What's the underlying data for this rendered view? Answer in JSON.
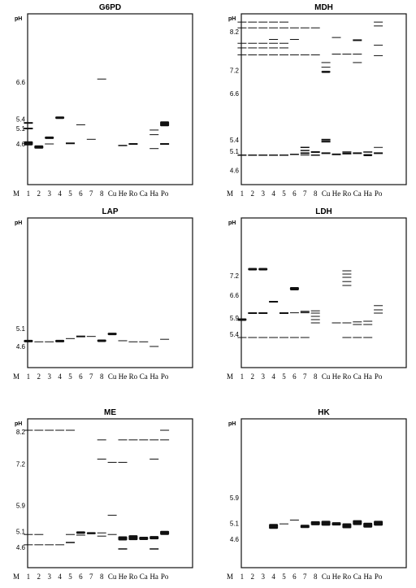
{
  "lanes": [
    "M",
    "1",
    "2",
    "3",
    "4",
    "5",
    "6",
    "7",
    "8",
    "Cu",
    "He",
    "Ro",
    "Ca",
    "Ha",
    "Po"
  ],
  "ph_unit": "pH",
  "panels": [
    {
      "name": "G6PD",
      "title": "G6PD",
      "ticks": [
        {
          "label": "6.6",
          "ph": 6.6
        },
        {
          "label": "5.4",
          "ph": 5.4
        },
        {
          "label": "5.1",
          "ph": 5.1
        },
        {
          "label": "4.6",
          "ph": 4.6
        }
      ],
      "bands": [
        {
          "lane": "1",
          "ph": 5.28,
          "w": 2
        },
        {
          "lane": "1",
          "ph": 5.1,
          "w": 2
        },
        {
          "lane": "1",
          "ph": 4.62,
          "w": 5
        },
        {
          "lane": "2",
          "ph": 4.5,
          "w": 4
        },
        {
          "lane": "3",
          "ph": 4.8,
          "w": 3
        },
        {
          "lane": "3",
          "ph": 4.6,
          "w": 1
        },
        {
          "lane": "4",
          "ph": 5.45,
          "w": 3
        },
        {
          "lane": "5",
          "ph": 4.62,
          "w": 2
        },
        {
          "lane": "6",
          "ph": 5.22,
          "w": 1
        },
        {
          "lane": "7",
          "ph": 4.75,
          "w": 1
        },
        {
          "lane": "8",
          "ph": 6.7,
          "w": 1
        },
        {
          "lane": "He",
          "ph": 4.55,
          "w": 1.5
        },
        {
          "lane": "Ro",
          "ph": 4.6,
          "w": 2
        },
        {
          "lane": "Ha",
          "ph": 5.05,
          "w": 1
        },
        {
          "lane": "Ha",
          "ph": 4.9,
          "w": 1
        },
        {
          "lane": "Ha",
          "ph": 4.45,
          "w": 1
        },
        {
          "lane": "Po",
          "ph": 5.25,
          "w": 6
        },
        {
          "lane": "Po",
          "ph": 4.6,
          "w": 2
        }
      ]
    },
    {
      "name": "MDH",
      "title": "MDH",
      "ticks": [
        {
          "label": "8.2",
          "ph": 8.2
        },
        {
          "label": "7.2",
          "ph": 7.2
        },
        {
          "label": "6.6",
          "ph": 6.6
        },
        {
          "label": "5.4",
          "ph": 5.4
        },
        {
          "label": "5.1",
          "ph": 5.1
        },
        {
          "label": "4.6",
          "ph": 4.6
        }
      ],
      "bands": [
        {
          "lane": "1",
          "ph": 8.45,
          "w": 1
        },
        {
          "lane": "1",
          "ph": 8.3,
          "w": 1
        },
        {
          "lane": "1",
          "ph": 7.9,
          "w": 1
        },
        {
          "lane": "1",
          "ph": 7.78,
          "w": 1
        },
        {
          "lane": "1",
          "ph": 7.6,
          "w": 1
        },
        {
          "lane": "1",
          "ph": 5.0,
          "w": 1.5
        },
        {
          "lane": "2",
          "ph": 8.45,
          "w": 1
        },
        {
          "lane": "2",
          "ph": 8.3,
          "w": 1
        },
        {
          "lane": "2",
          "ph": 7.9,
          "w": 1
        },
        {
          "lane": "2",
          "ph": 7.78,
          "w": 1
        },
        {
          "lane": "2",
          "ph": 7.6,
          "w": 1
        },
        {
          "lane": "2",
          "ph": 5.0,
          "w": 1.5
        },
        {
          "lane": "3",
          "ph": 8.45,
          "w": 1
        },
        {
          "lane": "3",
          "ph": 8.3,
          "w": 1
        },
        {
          "lane": "3",
          "ph": 7.9,
          "w": 1
        },
        {
          "lane": "3",
          "ph": 7.78,
          "w": 1
        },
        {
          "lane": "3",
          "ph": 7.6,
          "w": 1
        },
        {
          "lane": "3",
          "ph": 5.0,
          "w": 1.5
        },
        {
          "lane": "4",
          "ph": 8.45,
          "w": 1
        },
        {
          "lane": "4",
          "ph": 8.3,
          "w": 1
        },
        {
          "lane": "4",
          "ph": 8.0,
          "w": 1
        },
        {
          "lane": "4",
          "ph": 7.9,
          "w": 1
        },
        {
          "lane": "4",
          "ph": 7.78,
          "w": 1
        },
        {
          "lane": "4",
          "ph": 7.6,
          "w": 1
        },
        {
          "lane": "4",
          "ph": 5.0,
          "w": 1.5
        },
        {
          "lane": "5",
          "ph": 8.45,
          "w": 1
        },
        {
          "lane": "5",
          "ph": 8.3,
          "w": 1
        },
        {
          "lane": "5",
          "ph": 7.9,
          "w": 1
        },
        {
          "lane": "5",
          "ph": 7.78,
          "w": 1
        },
        {
          "lane": "5",
          "ph": 7.6,
          "w": 1
        },
        {
          "lane": "5",
          "ph": 5.0,
          "w": 1.5
        },
        {
          "lane": "6",
          "ph": 8.3,
          "w": 1
        },
        {
          "lane": "6",
          "ph": 8.0,
          "w": 1
        },
        {
          "lane": "6",
          "ph": 7.6,
          "w": 1
        },
        {
          "lane": "6",
          "ph": 5.02,
          "w": 1.5
        },
        {
          "lane": "7",
          "ph": 8.3,
          "w": 1
        },
        {
          "lane": "7",
          "ph": 7.6,
          "w": 1
        },
        {
          "lane": "7",
          "ph": 5.2,
          "w": 1.5
        },
        {
          "lane": "7",
          "ph": 5.12,
          "w": 1.5
        },
        {
          "lane": "7",
          "ph": 5.05,
          "w": 2
        },
        {
          "lane": "7",
          "ph": 5.0,
          "w": 1
        },
        {
          "lane": "8",
          "ph": 8.3,
          "w": 1
        },
        {
          "lane": "8",
          "ph": 7.6,
          "w": 1
        },
        {
          "lane": "8",
          "ph": 5.08,
          "w": 2
        },
        {
          "lane": "8",
          "ph": 5.0,
          "w": 1.5
        },
        {
          "lane": "Cu",
          "ph": 7.4,
          "w": 1
        },
        {
          "lane": "Cu",
          "ph": 7.28,
          "w": 1
        },
        {
          "lane": "Cu",
          "ph": 7.16,
          "w": 2.5
        },
        {
          "lane": "Cu",
          "ph": 5.4,
          "w": 2
        },
        {
          "lane": "Cu",
          "ph": 5.35,
          "w": 2
        },
        {
          "lane": "Cu",
          "ph": 5.05,
          "w": 2
        },
        {
          "lane": "He",
          "ph": 8.05,
          "w": 1
        },
        {
          "lane": "He",
          "ph": 7.62,
          "w": 1
        },
        {
          "lane": "He",
          "ph": 5.02,
          "w": 2
        },
        {
          "lane": "Ro",
          "ph": 7.62,
          "w": 1
        },
        {
          "lane": "Ro",
          "ph": 5.08,
          "w": 1.5
        },
        {
          "lane": "Ro",
          "ph": 5.04,
          "w": 2
        },
        {
          "lane": "Ca",
          "ph": 7.98,
          "w": 2
        },
        {
          "lane": "Ca",
          "ph": 7.62,
          "w": 1
        },
        {
          "lane": "Ca",
          "ph": 7.4,
          "w": 1
        },
        {
          "lane": "Ca",
          "ph": 5.05,
          "w": 2
        },
        {
          "lane": "Ha",
          "ph": 5.08,
          "w": 1.5
        },
        {
          "lane": "Ha",
          "ph": 5.0,
          "w": 2.5
        },
        {
          "lane": "Po",
          "ph": 8.45,
          "w": 1
        },
        {
          "lane": "Po",
          "ph": 8.35,
          "w": 1
        },
        {
          "lane": "Po",
          "ph": 7.85,
          "w": 1
        },
        {
          "lane": "Po",
          "ph": 7.58,
          "w": 1
        },
        {
          "lane": "Po",
          "ph": 5.2,
          "w": 1
        },
        {
          "lane": "Po",
          "ph": 5.05,
          "w": 2
        }
      ]
    },
    {
      "name": "LAP",
      "title": "LAP",
      "ticks": [
        {
          "label": "5.1",
          "ph": 5.1
        },
        {
          "label": "4.6",
          "ph": 4.6
        }
      ],
      "bands": [
        {
          "lane": "1",
          "ph": 4.75,
          "w": 3
        },
        {
          "lane": "2",
          "ph": 4.73,
          "w": 1
        },
        {
          "lane": "3",
          "ph": 4.73,
          "w": 1
        },
        {
          "lane": "4",
          "ph": 4.75,
          "w": 3
        },
        {
          "lane": "5",
          "ph": 4.82,
          "w": 1
        },
        {
          "lane": "6",
          "ph": 4.88,
          "w": 2
        },
        {
          "lane": "7",
          "ph": 4.88,
          "w": 1
        },
        {
          "lane": "8",
          "ph": 4.76,
          "w": 3
        },
        {
          "lane": "Cu",
          "ph": 4.95,
          "w": 3
        },
        {
          "lane": "He",
          "ph": 4.76,
          "w": 1
        },
        {
          "lane": "Ro",
          "ph": 4.73,
          "w": 1
        },
        {
          "lane": "Ca",
          "ph": 4.73,
          "w": 1
        },
        {
          "lane": "Ha",
          "ph": 4.6,
          "w": 1
        },
        {
          "lane": "Po",
          "ph": 4.8,
          "w": 1
        }
      ]
    },
    {
      "name": "LDH",
      "title": "LDH",
      "ticks": [
        {
          "label": "7.2",
          "ph": 7.2
        },
        {
          "label": "6.6",
          "ph": 6.6
        },
        {
          "label": "5.9",
          "ph": 5.9
        },
        {
          "label": "5.4",
          "ph": 5.4
        }
      ],
      "bands": [
        {
          "lane": "1",
          "ph": 5.85,
          "w": 3
        },
        {
          "lane": "1",
          "ph": 5.3,
          "w": 1
        },
        {
          "lane": "2",
          "ph": 7.4,
          "w": 3
        },
        {
          "lane": "2",
          "ph": 6.05,
          "w": 2
        },
        {
          "lane": "2",
          "ph": 5.3,
          "w": 1
        },
        {
          "lane": "3",
          "ph": 7.4,
          "w": 3
        },
        {
          "lane": "3",
          "ph": 6.05,
          "w": 2
        },
        {
          "lane": "3",
          "ph": 5.3,
          "w": 1
        },
        {
          "lane": "4",
          "ph": 6.4,
          "w": 2
        },
        {
          "lane": "4",
          "ph": 5.3,
          "w": 1
        },
        {
          "lane": "5",
          "ph": 6.05,
          "w": 2
        },
        {
          "lane": "5",
          "ph": 5.3,
          "w": 1
        },
        {
          "lane": "6",
          "ph": 6.8,
          "w": 4
        },
        {
          "lane": "6",
          "ph": 6.06,
          "w": 1
        },
        {
          "lane": "6",
          "ph": 5.3,
          "w": 1
        },
        {
          "lane": "7",
          "ph": 6.1,
          "w": 1.5
        },
        {
          "lane": "7",
          "ph": 6.06,
          "w": 1
        },
        {
          "lane": "7",
          "ph": 5.3,
          "w": 1
        },
        {
          "lane": "8",
          "ph": 6.12,
          "w": 1
        },
        {
          "lane": "8",
          "ph": 6.05,
          "w": 1
        },
        {
          "lane": "8",
          "ph": 5.95,
          "w": 1
        },
        {
          "lane": "8",
          "ph": 5.85,
          "w": 1
        },
        {
          "lane": "8",
          "ph": 5.75,
          "w": 1
        },
        {
          "lane": "He",
          "ph": 5.75,
          "w": 1
        },
        {
          "lane": "Ro",
          "ph": 7.35,
          "w": 1
        },
        {
          "lane": "Ro",
          "ph": 7.25,
          "w": 1
        },
        {
          "lane": "Ro",
          "ph": 7.15,
          "w": 1
        },
        {
          "lane": "Ro",
          "ph": 7.02,
          "w": 1
        },
        {
          "lane": "Ro",
          "ph": 6.9,
          "w": 1
        },
        {
          "lane": "Ro",
          "ph": 5.75,
          "w": 1
        },
        {
          "lane": "Ro",
          "ph": 5.3,
          "w": 1
        },
        {
          "lane": "Ca",
          "ph": 5.78,
          "w": 1
        },
        {
          "lane": "Ca",
          "ph": 5.7,
          "w": 1
        },
        {
          "lane": "Ca",
          "ph": 5.3,
          "w": 1
        },
        {
          "lane": "Ha",
          "ph": 5.8,
          "w": 1
        },
        {
          "lane": "Ha",
          "ph": 5.7,
          "w": 1
        },
        {
          "lane": "Ha",
          "ph": 5.3,
          "w": 1
        },
        {
          "lane": "Po",
          "ph": 6.28,
          "w": 1
        },
        {
          "lane": "Po",
          "ph": 6.15,
          "w": 1
        },
        {
          "lane": "Po",
          "ph": 6.05,
          "w": 1
        }
      ]
    },
    {
      "name": "ME",
      "title": "ME",
      "ticks": [
        {
          "label": "8.2",
          "ph": 8.2
        },
        {
          "label": "7.2",
          "ph": 7.2
        },
        {
          "label": "5.9",
          "ph": 5.9
        },
        {
          "label": "5.1",
          "ph": 5.1
        },
        {
          "label": "4.6",
          "ph": 4.6
        }
      ],
      "bands": [
        {
          "lane": "1",
          "ph": 8.25,
          "w": 1
        },
        {
          "lane": "1",
          "ph": 5.0,
          "w": 1
        },
        {
          "lane": "1",
          "ph": 4.68,
          "w": 1
        },
        {
          "lane": "2",
          "ph": 8.25,
          "w": 1
        },
        {
          "lane": "2",
          "ph": 5.0,
          "w": 1
        },
        {
          "lane": "2",
          "ph": 4.68,
          "w": 1
        },
        {
          "lane": "3",
          "ph": 8.25,
          "w": 1
        },
        {
          "lane": "3",
          "ph": 4.68,
          "w": 1
        },
        {
          "lane": "4",
          "ph": 8.25,
          "w": 1
        },
        {
          "lane": "4",
          "ph": 4.68,
          "w": 1
        },
        {
          "lane": "5",
          "ph": 8.25,
          "w": 1
        },
        {
          "lane": "5",
          "ph": 5.0,
          "w": 1
        },
        {
          "lane": "5",
          "ph": 4.75,
          "w": 1.5
        },
        {
          "lane": "6",
          "ph": 5.06,
          "w": 3
        },
        {
          "lane": "6",
          "ph": 4.98,
          "w": 1
        },
        {
          "lane": "7",
          "ph": 5.04,
          "w": 2.5
        },
        {
          "lane": "8",
          "ph": 7.95,
          "w": 1
        },
        {
          "lane": "8",
          "ph": 7.35,
          "w": 1
        },
        {
          "lane": "8",
          "ph": 5.05,
          "w": 1
        },
        {
          "lane": "8",
          "ph": 4.95,
          "w": 1
        },
        {
          "lane": "Cu",
          "ph": 7.25,
          "w": 1
        },
        {
          "lane": "Cu",
          "ph": 5.6,
          "w": 1
        },
        {
          "lane": "Cu",
          "ph": 5.0,
          "w": 1
        },
        {
          "lane": "He",
          "ph": 7.95,
          "w": 1
        },
        {
          "lane": "He",
          "ph": 7.25,
          "w": 1
        },
        {
          "lane": "He",
          "ph": 4.88,
          "w": 5
        },
        {
          "lane": "He",
          "ph": 4.55,
          "w": 1.5
        },
        {
          "lane": "Ro",
          "ph": 7.95,
          "w": 1
        },
        {
          "lane": "Ro",
          "ph": 4.9,
          "w": 6
        },
        {
          "lane": "Ca",
          "ph": 7.95,
          "w": 1
        },
        {
          "lane": "Ca",
          "ph": 4.88,
          "w": 4
        },
        {
          "lane": "Ha",
          "ph": 7.95,
          "w": 1
        },
        {
          "lane": "Ha",
          "ph": 7.35,
          "w": 1
        },
        {
          "lane": "Ha",
          "ph": 4.9,
          "w": 4
        },
        {
          "lane": "Ha",
          "ph": 4.55,
          "w": 1.5
        },
        {
          "lane": "Po",
          "ph": 8.25,
          "w": 1
        },
        {
          "lane": "Po",
          "ph": 7.95,
          "w": 1
        },
        {
          "lane": "Po",
          "ph": 5.05,
          "w": 5
        }
      ]
    },
    {
      "name": "HK",
      "title": "HK",
      "ticks": [
        {
          "label": "5.9",
          "ph": 5.9
        },
        {
          "label": "5.1",
          "ph": 5.1
        },
        {
          "label": "4.6",
          "ph": 4.6
        }
      ],
      "bands": [
        {
          "lane": "4",
          "ph": 5.0,
          "w": 6
        },
        {
          "lane": "5",
          "ph": 5.08,
          "w": 1
        },
        {
          "lane": "6",
          "ph": 5.2,
          "w": 1
        },
        {
          "lane": "7",
          "ph": 5.0,
          "w": 4
        },
        {
          "lane": "8",
          "ph": 5.1,
          "w": 5
        },
        {
          "lane": "Cu",
          "ph": 5.1,
          "w": 6
        },
        {
          "lane": "He",
          "ph": 5.08,
          "w": 4
        },
        {
          "lane": "Ro",
          "ph": 5.02,
          "w": 6
        },
        {
          "lane": "Ca",
          "ph": 5.12,
          "w": 6
        },
        {
          "lane": "Ha",
          "ph": 5.04,
          "w": 6
        },
        {
          "lane": "Po",
          "ph": 5.1,
          "w": 6
        }
      ]
    }
  ]
}
